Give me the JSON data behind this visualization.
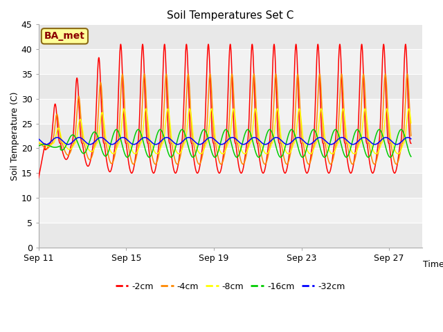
{
  "title": "Soil Temperatures Set C",
  "xlabel": "Time",
  "ylabel": "Soil Temperature (C)",
  "ylim": [
    0,
    45
  ],
  "yticks": [
    0,
    5,
    10,
    15,
    20,
    25,
    30,
    35,
    40,
    45
  ],
  "xtick_labels": [
    "Sep 11",
    "Sep 15",
    "Sep 19",
    "Sep 23",
    "Sep 27"
  ],
  "colors": {
    "-2cm": "#ff0000",
    "-4cm": "#ff8800",
    "-8cm": "#ffff00",
    "-16cm": "#00cc00",
    "-32cm": "#0000ff"
  },
  "legend_labels": [
    "-2cm",
    "-4cm",
    "-8cm",
    "-16cm",
    "-32cm"
  ],
  "annotation_text": "BA_met",
  "background_color": "#ffffff",
  "band_colors": [
    "#e8e8e8",
    "#f0f0f0"
  ],
  "band_edges": [
    0,
    5,
    10,
    15,
    20,
    25,
    30,
    35,
    40,
    45
  ]
}
